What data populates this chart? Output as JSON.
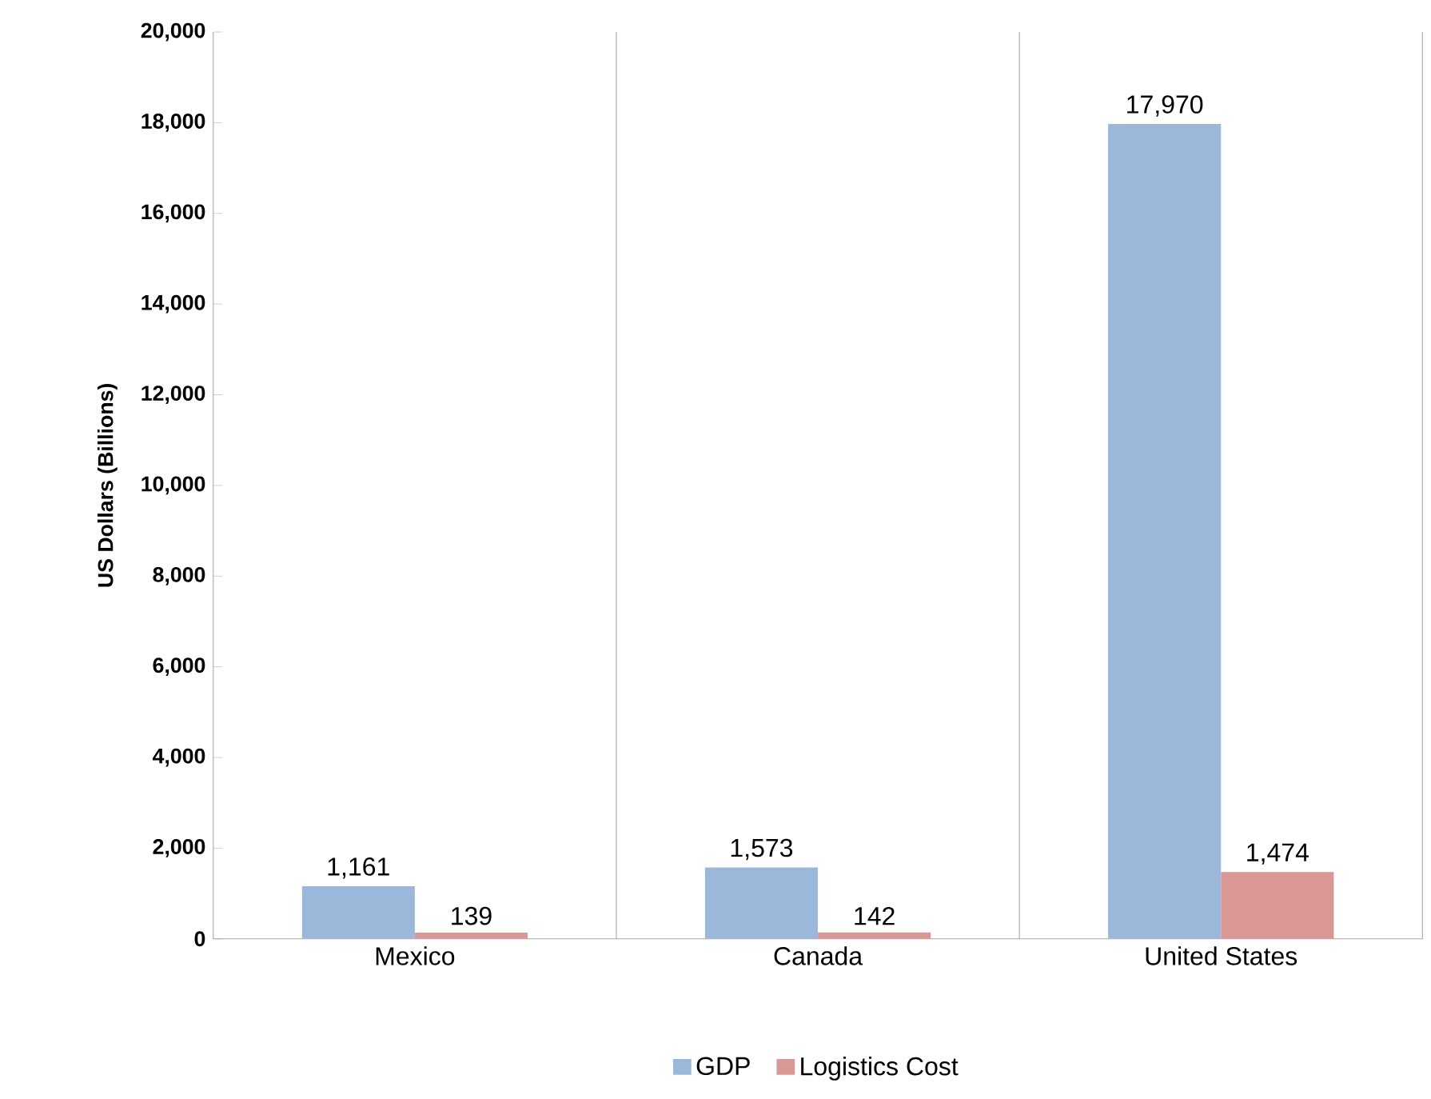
{
  "chart_data": {
    "type": "bar",
    "ylabel": "US Dollars (Billions)",
    "categories": [
      "Mexico",
      "Canada",
      "United States"
    ],
    "series": [
      {
        "name": "GDP",
        "color": "#9bb7d9",
        "values": [
          1161,
          1573,
          17970
        ],
        "value_labels": [
          "1,161",
          "1,573",
          "17,970"
        ]
      },
      {
        "name": "Logistics Cost",
        "color": "#d99795",
        "values": [
          139,
          142,
          1474
        ],
        "value_labels": [
          "139",
          "142",
          "1,474"
        ]
      }
    ],
    "ylim": [
      0,
      20000
    ],
    "yticks": [
      0,
      {
        "value": 2000,
        "label": "2,000"
      },
      {
        "value": 4000,
        "label": "4,000"
      },
      {
        "value": 6000,
        "label": "6,000"
      },
      {
        "value": 8000,
        "label": "8,000"
      },
      {
        "value": 10000,
        "label": "10,000"
      },
      {
        "value": 12000,
        "label": "12,000"
      },
      {
        "value": 14000,
        "label": "14,000"
      },
      {
        "value": 16000,
        "label": "16,000"
      },
      {
        "value": 18000,
        "label": "18,000"
      },
      {
        "value": 20000,
        "label": "20,000"
      }
    ],
    "grid": "x",
    "legend": "bottom"
  }
}
